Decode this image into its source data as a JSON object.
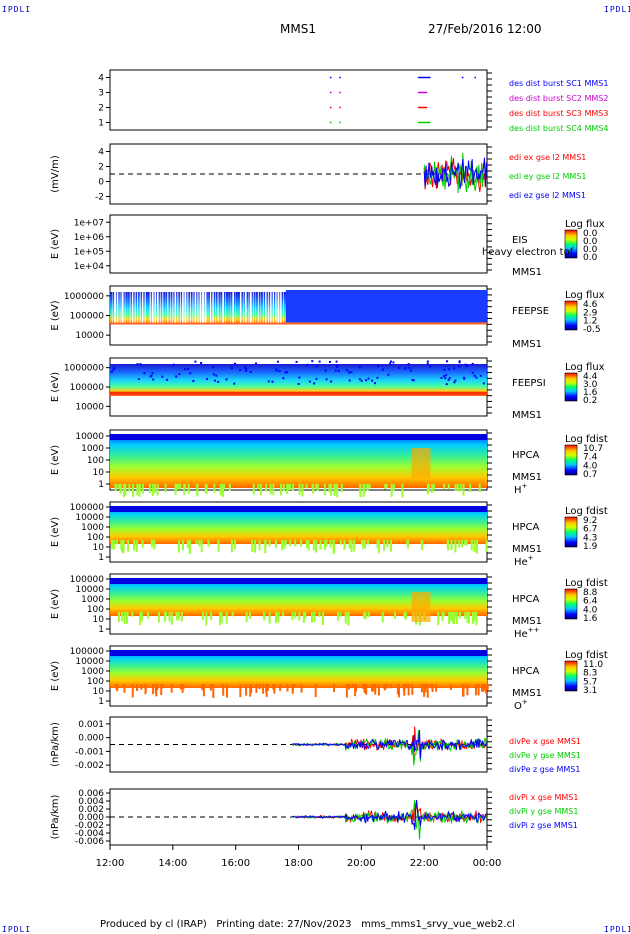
{
  "corner_label": "IPDLI",
  "header": {
    "title": "MMS1",
    "date": "27/Feb/2016 12:00"
  },
  "footer": {
    "produced_by": "Produced by cl (IRAP)",
    "printing_date": "Printing date: 27/Nov/2023",
    "file": "mms_mms1_srvy_vue_web2.cl"
  },
  "colors": {
    "red": "#ff0000",
    "green": "#00cc00",
    "blue": "#0000ff",
    "magenta": "#cc00cc"
  },
  "chart_data": [
    {
      "type": "line",
      "name": "burst availability",
      "yticks": [
        "1",
        "2",
        "3",
        "4"
      ],
      "ylim": [
        0.5,
        4.5
      ],
      "xlim": [
        "12:00",
        "00:00"
      ],
      "series": [
        {
          "name": "des dist burst SC1 MMS1",
          "color": "#0000ff"
        },
        {
          "name": "des dist burst SC2 MMS2",
          "color": "#cc00cc"
        },
        {
          "name": "des dist burst SC3 MMS3",
          "color": "#ff0000"
        },
        {
          "name": "des dist burst SC4 MMS4",
          "color": "#00cc00"
        }
      ]
    },
    {
      "type": "line",
      "ylabel": "(mV/m)",
      "yticks": [
        "-2",
        "0",
        "2",
        "4"
      ],
      "ylim": [
        -4,
        4
      ],
      "series": [
        {
          "name": "edi ex gse l2 MMS1",
          "color": "#ff0000"
        },
        {
          "name": "edi ey gse l2 MMS1",
          "color": "#00cc00"
        },
        {
          "name": "edi ez gse l2 MMS1",
          "color": "#0000ff"
        }
      ]
    },
    {
      "type": "heatmap",
      "ylabel": "E (eV)",
      "yticks": [
        "1e+04",
        "1e+05",
        "1e+06",
        "1e+07"
      ],
      "instrument": "EIS",
      "mission": "MMS1",
      "note": "heavy electron tof",
      "colorbar": {
        "title": "Log flux",
        "ticks": [
          "0.0",
          "0.0",
          "0.0",
          "0.0"
        ]
      }
    },
    {
      "type": "heatmap",
      "ylabel": "E (eV)",
      "yticks": [
        "10000",
        "100000",
        "1000000"
      ],
      "instrument": "FEEPSE",
      "mission": "MMS1",
      "colorbar": {
        "title": "Log flux",
        "ticks": [
          "4.6",
          "2.9",
          "1.2",
          "-0.5"
        ]
      }
    },
    {
      "type": "heatmap",
      "ylabel": "E (eV)",
      "yticks": [
        "10000",
        "100000",
        "1000000"
      ],
      "instrument": "FEEPSI",
      "mission": "MMS1",
      "colorbar": {
        "title": "Log flux",
        "ticks": [
          "4.4",
          "3.0",
          "1.6",
          "0.2"
        ]
      }
    },
    {
      "type": "heatmap",
      "ylabel": "E (eV)",
      "yticks": [
        "1",
        "10",
        "100",
        "1000",
        "10000"
      ],
      "instrument": "HPCA",
      "mission": "MMS1",
      "species": "H",
      "charge": "+",
      "colorbar": {
        "title": "Log fdist",
        "ticks": [
          "10.7",
          "7.4",
          "4.0",
          "0.7"
        ]
      }
    },
    {
      "type": "heatmap",
      "ylabel": "E (eV)",
      "yticks": [
        "1",
        "10",
        "100",
        "1000",
        "10000",
        "100000"
      ],
      "instrument": "HPCA",
      "mission": "MMS1",
      "species": "He",
      "charge": "+",
      "colorbar": {
        "title": "Log fdist",
        "ticks": [
          "9.2",
          "6.7",
          "4.3",
          "1.9"
        ]
      }
    },
    {
      "type": "heatmap",
      "ylabel": "E (eV)",
      "yticks": [
        "1",
        "10",
        "100",
        "1000",
        "10000",
        "100000"
      ],
      "instrument": "HPCA",
      "mission": "MMS1",
      "species": "He",
      "charge": "++",
      "colorbar": {
        "title": "Log fdist",
        "ticks": [
          "8.8",
          "6.4",
          "4.0",
          "1.6"
        ]
      }
    },
    {
      "type": "heatmap",
      "ylabel": "E (eV)",
      "yticks": [
        "1",
        "10",
        "100",
        "1000",
        "10000",
        "100000"
      ],
      "instrument": "HPCA",
      "mission": "MMS1",
      "species": "O",
      "charge": "+",
      "colorbar": {
        "title": "Log fdist",
        "ticks": [
          "11.0",
          "8.3",
          "5.7",
          "3.1"
        ]
      }
    },
    {
      "type": "line",
      "ylabel": "(nPa/km)",
      "yticks": [
        "-0.002",
        "-0.001",
        "0.000",
        "0.001"
      ],
      "series": [
        {
          "name": "divPe x gse MMS1",
          "color": "#ff0000"
        },
        {
          "name": "divPe y gse MMS1",
          "color": "#00cc00"
        },
        {
          "name": "divPe z gse MMS1",
          "color": "#0000ff"
        }
      ]
    },
    {
      "type": "line",
      "ylabel": "(nPa/km)",
      "yticks": [
        "-0.006",
        "-0.004",
        "-0.002",
        "0.000",
        "0.002",
        "0.004",
        "0.006"
      ],
      "series": [
        {
          "name": "divPi x gse MMS1",
          "color": "#ff0000"
        },
        {
          "name": "divPi y gse MMS1",
          "color": "#00cc00"
        },
        {
          "name": "divPi z gse MMS1",
          "color": "#0000ff"
        }
      ]
    }
  ],
  "xaxis": {
    "ticks": [
      "12:00",
      "14:00",
      "16:00",
      "18:00",
      "20:00",
      "22:00",
      "00:00"
    ]
  }
}
